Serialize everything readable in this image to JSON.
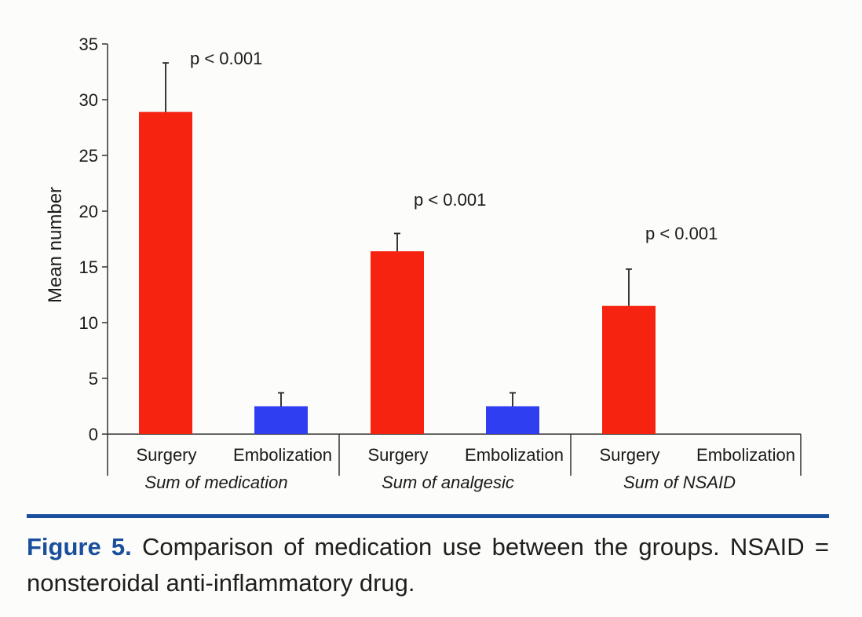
{
  "chart_data": {
    "type": "bar",
    "ylabel": "Mean number",
    "ylim": [
      0,
      35
    ],
    "yticks": [
      0,
      5,
      10,
      15,
      20,
      25,
      30,
      35
    ],
    "grid": false,
    "series_colors": {
      "Surgery": "#f5230f",
      "Embolization": "#2f3ef0"
    },
    "groups": [
      {
        "name": "Sum of medication",
        "p_value": "p < 0.001",
        "bars": [
          {
            "category": "Surgery",
            "value": 28.9,
            "error": 4.4
          },
          {
            "category": "Embolization",
            "value": 2.5,
            "error": 1.2
          }
        ]
      },
      {
        "name": "Sum of analgesic",
        "p_value": "p < 0.001",
        "bars": [
          {
            "category": "Surgery",
            "value": 16.4,
            "error": 1.6
          },
          {
            "category": "Embolization",
            "value": 2.5,
            "error": 1.2
          }
        ]
      },
      {
        "name": "Sum of NSAID",
        "p_value": "p < 0.001",
        "bars": [
          {
            "category": "Surgery",
            "value": 11.5,
            "error": 3.3
          },
          {
            "category": "Embolization",
            "value": 0,
            "error": 0
          }
        ]
      }
    ]
  },
  "caption": {
    "label": "Figure 5.",
    "text": "Comparison of medication use between the groups. NSAID = nonsteroidal anti-inflammatory drug."
  },
  "colors": {
    "rule": "#1a4f9c",
    "figure_label": "#1a4f9c"
  }
}
